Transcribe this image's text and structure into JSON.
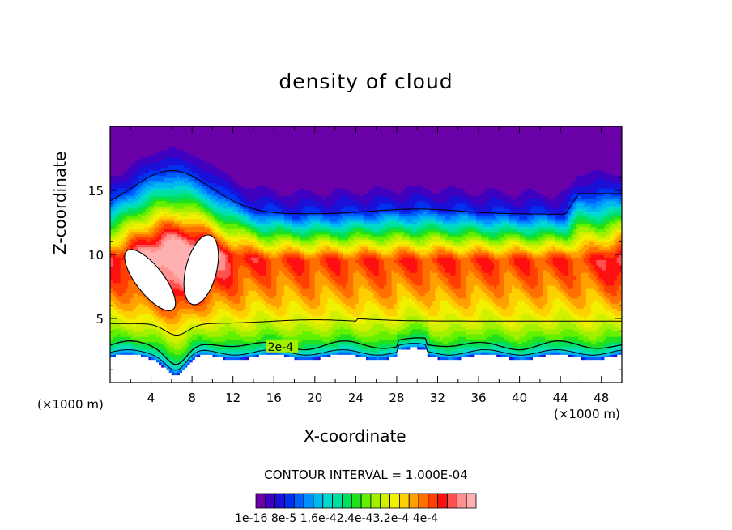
{
  "chart_data": {
    "type": "heatmap",
    "title": "density of cloud",
    "xlabel": "X-coordinate",
    "ylabel": "Z-coordinate",
    "x_unit_label": "(×1000 m)",
    "x_unit_label_right": "(×1000 m)",
    "xlim": [
      0,
      50
    ],
    "ylim": [
      0,
      20
    ],
    "x_ticks": [
      4,
      8,
      12,
      16,
      20,
      24,
      28,
      32,
      36,
      40,
      44,
      48
    ],
    "y_ticks": [
      5,
      10,
      15
    ],
    "x_tick_labels": [
      "4",
      "8",
      "12",
      "16",
      "20",
      "24",
      "28",
      "32",
      "36",
      "40",
      "44",
      "48"
    ],
    "y_tick_labels": [
      "5",
      "10",
      "15"
    ],
    "contour_interval_text": "CONTOUR INTERVAL = 1.000E-04",
    "contour_label": "2e-4",
    "colorbar_labels_text": "1e-16 8e-5 1.6e-42.4e-43.2e-4 4e-4",
    "colorbar_min": 1e-16,
    "colorbar_max": 0.0004,
    "colors": {
      "palette": [
        "#6a00a8",
        "#3f00c0",
        "#1a10d8",
        "#0030f0",
        "#0060ff",
        "#0090ff",
        "#00b8f0",
        "#00d8d0",
        "#00e0a0",
        "#00e060",
        "#20e020",
        "#60f000",
        "#a0f000",
        "#d0f000",
        "#f0f000",
        "#ffd000",
        "#ffa000",
        "#ff7000",
        "#ff4000",
        "#ff1010",
        "#ff5050",
        "#ff9090",
        "#ffb0b0"
      ]
    }
  }
}
